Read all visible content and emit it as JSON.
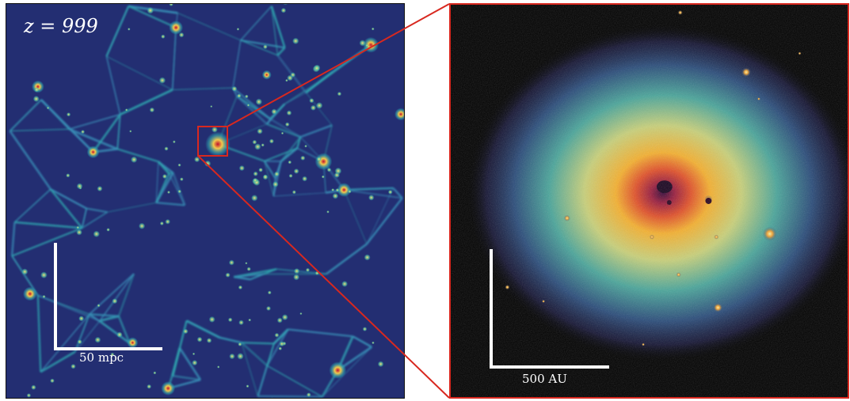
{
  "left_panel": {
    "redshift_label": "z = 999",
    "scale_label": "50 mpc"
  },
  "right_panel": {
    "scale_label": "500 AU"
  },
  "colors": {
    "zoom_box": "#d8281f",
    "void": "#1f2a6b",
    "filament": "#2fa7b0",
    "halo_core": "#f2c94c",
    "hot_core": "#c01030"
  }
}
